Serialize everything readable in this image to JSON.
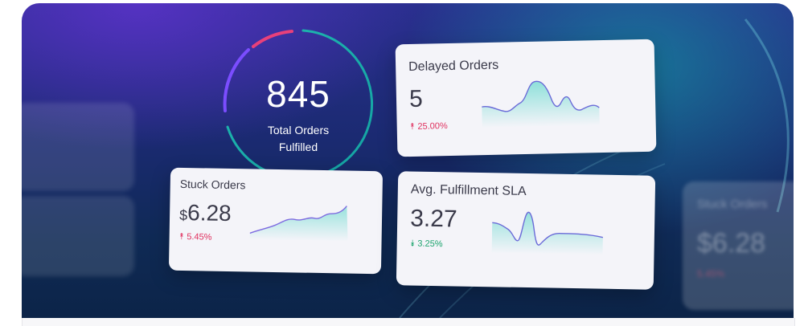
{
  "hero": {
    "total": {
      "value": "845",
      "label_line1": "Total Orders",
      "label_line2": "Fulfilled"
    },
    "ghost_card": {
      "title": "Stuck Orders",
      "value": "$6.28",
      "trend": "5.45%"
    }
  },
  "cards": {
    "delayed": {
      "title": "Delayed Orders",
      "value": "5",
      "trend": "25.00%",
      "trend_dir": "up"
    },
    "stuck": {
      "title": "Stuck Orders",
      "currency": "$",
      "value": "6.28",
      "trend": "5.45%",
      "trend_dir": "up"
    },
    "sla": {
      "title": "Avg. Fulfillment SLA",
      "value": "3.27",
      "trend": "3.25%",
      "trend_dir": "down"
    }
  },
  "colors": {
    "trend_up": "#e0315f",
    "trend_down": "#1aa36c",
    "ring_teal": "#18b2a8",
    "ring_purple": "#7b4dff",
    "ring_pink": "#e8407a"
  },
  "icons": {
    "up": "double-chevron-up-icon",
    "down": "double-chevron-down-icon"
  }
}
